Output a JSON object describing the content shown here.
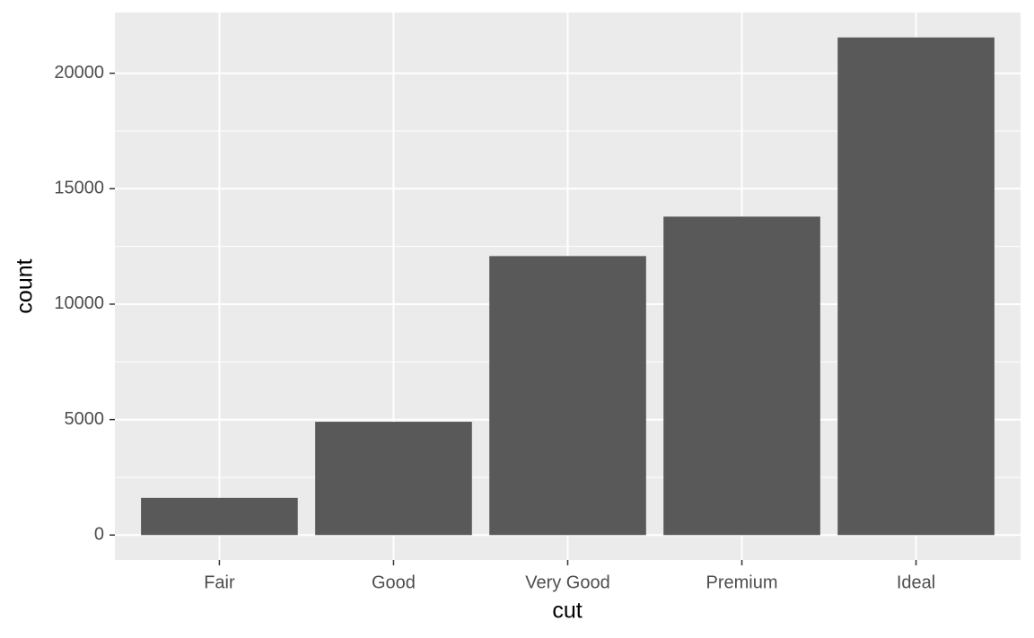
{
  "chart_data": {
    "type": "bar",
    "x_label": "cut",
    "y_label": "count",
    "categories": [
      "Fair",
      "Good",
      "Very Good",
      "Premium",
      "Ideal"
    ],
    "values": [
      1610,
      4906,
      12082,
      13791,
      21551
    ],
    "color": "#595959",
    "ylim": [
      -1077.55,
      22628.55
    ],
    "yticks": [
      0,
      5000,
      10000,
      15000,
      20000
    ],
    "minor_yticks": [
      2500,
      7500,
      12500,
      17500
    ],
    "grid": true
  }
}
